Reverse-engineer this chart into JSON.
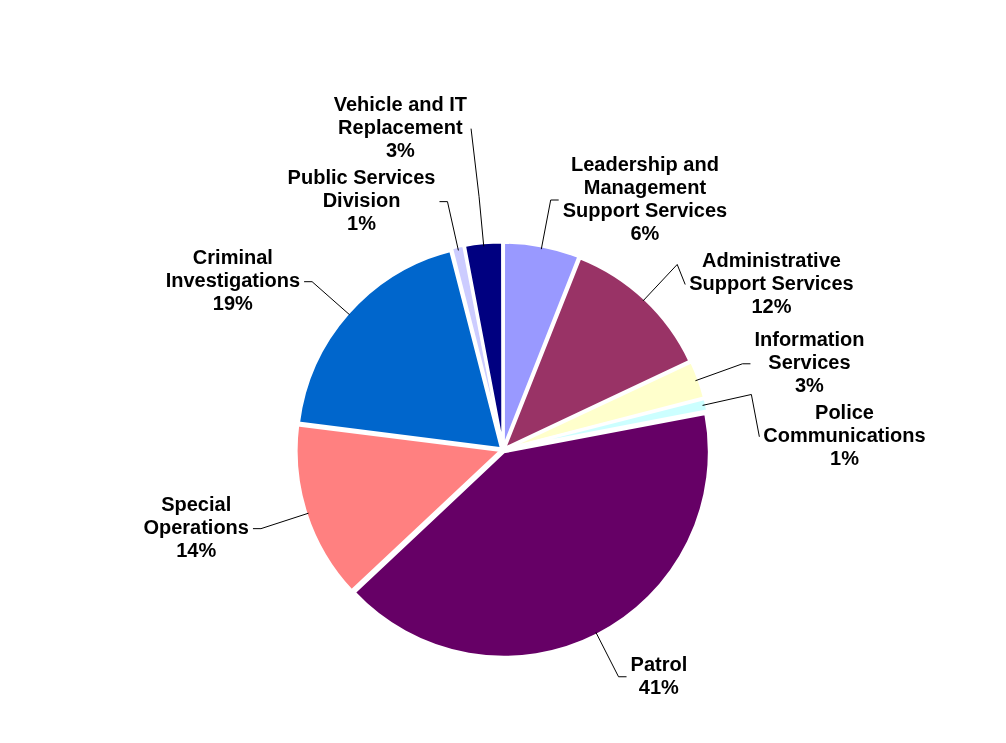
{
  "chart_data": {
    "type": "pie",
    "categories": [
      "Leadership and Management Support Services",
      "Administrative Support Services",
      "Information Services",
      "Police Communications",
      "Patrol",
      "Special Operations",
      "Criminal Investigations",
      "Public Services Division",
      "Vehicle and IT Replacement"
    ],
    "values": [
      6,
      12,
      3,
      1,
      41,
      14,
      19,
      1,
      3
    ],
    "value_labels": [
      "6%",
      "12%",
      "3%",
      "1%",
      "41%",
      "14%",
      "19%",
      "1%",
      "3%"
    ],
    "colors": [
      "#9999ff",
      "#993366",
      "#ffffcc",
      "#ccffff",
      "#660066",
      "#ff8080",
      "#0066cc",
      "#ccccff",
      "#000080"
    ],
    "legend": false
  }
}
